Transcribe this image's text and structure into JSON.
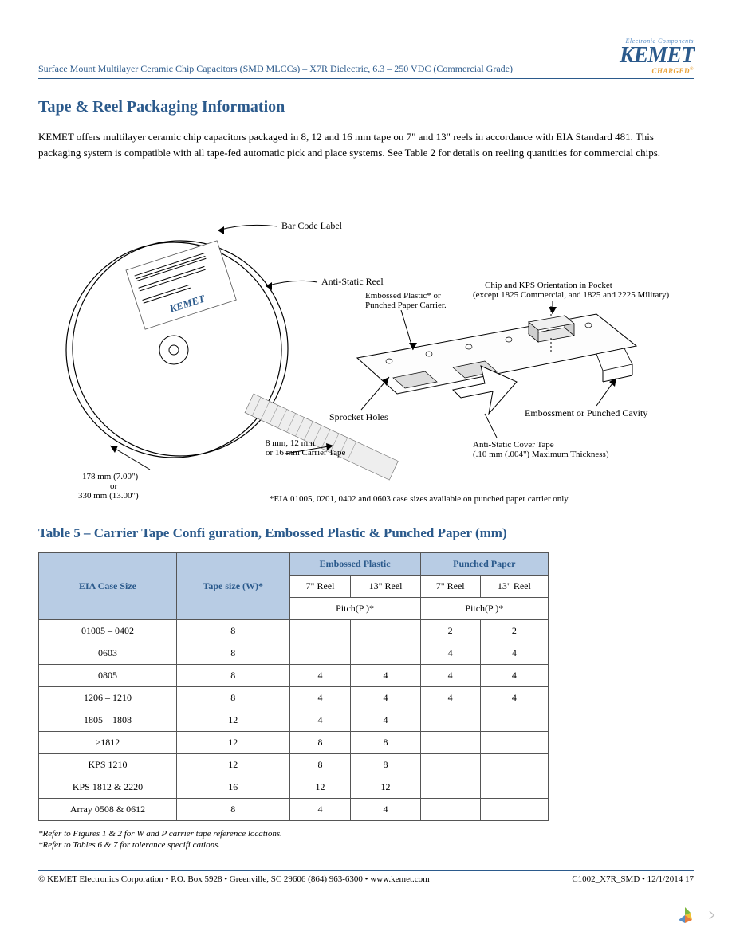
{
  "header": {
    "doc_title": "Surface Mount Multilayer Ceramic Chip Capacitors (SMD MLCCs) – X7R Dielectric, 6.3 – 250 VDC (Commercial Grade)",
    "logo_tagline": "Electronic Components",
    "logo_text": "KEMET",
    "logo_sub": "CHARGED"
  },
  "section": {
    "title": "Tape & Reel Packaging Information",
    "paragraph": "KEMET offers multilayer ceramic chip capacitors packaged in 8, 12 and 16 mm tape on 7\" and 13\" reels in accordance with EIA Standard 481. This packaging system is compatible with all tape-fed automatic pick and place systems. See Table 2 for details on reeling quantities for commercial chips."
  },
  "diagram": {
    "labels": {
      "barcode": "Bar Code Label",
      "antistatic_reel": "Anti-Static Reel",
      "carrier_type": "Embossed Plastic* or\nPunched Paper Carrier.",
      "chip_orient": "Chip and KPS Orientation in Pocket\n(except 1825 Commercial, and 1825 and 2225 Military)",
      "sprocket": "Sprocket Holes",
      "emboss_cavity": "Embossment or Punched Cavity",
      "cover_tape": "Anti-Static Cover Tape\n(.10 mm (.004\") Maximum Thickness)",
      "tape_width": "8 mm, 12 mm\nor 16 mm Carrier Tape",
      "reel_size": "178 mm (7.00\")\nor\n330 mm (13.00\")",
      "note": "*EIA 01005, 0201, 0402 and 0603 case sizes available on punched paper carrier only."
    },
    "kemet_stamp": "KEMET"
  },
  "table5": {
    "title": "Table 5 – Carrier Tape Confi guration, Embossed Plastic & Punched Paper (mm)",
    "headers": {
      "case": "EIA Case Size",
      "tape": "Tape size (W)*",
      "emb": "Embossed Plastic",
      "pun": "Punched Paper",
      "r7": "7\" Reel",
      "r13": "13\" Reel",
      "pitch": "Pitch(P  )*"
    },
    "rows": [
      {
        "case": "01005 – 0402",
        "tape": "8",
        "e7": "",
        "e13": "",
        "p7": "2",
        "p13": "2"
      },
      {
        "case": "0603",
        "tape": "8",
        "e7": "",
        "e13": "",
        "p7": "4",
        "p13": "4"
      },
      {
        "case": "0805",
        "tape": "8",
        "e7": "4",
        "e13": "4",
        "p7": "4",
        "p13": "4"
      },
      {
        "case": "1206 – 1210",
        "tape": "8",
        "e7": "4",
        "e13": "4",
        "p7": "4",
        "p13": "4"
      },
      {
        "case": "1805 – 1808",
        "tape": "12",
        "e7": "4",
        "e13": "4",
        "p7": "",
        "p13": ""
      },
      {
        "case": "≥1812",
        "tape": "12",
        "e7": "8",
        "e13": "8",
        "p7": "",
        "p13": ""
      },
      {
        "case": "KPS 1210",
        "tape": "12",
        "e7": "8",
        "e13": "8",
        "p7": "",
        "p13": ""
      },
      {
        "case": "KPS 1812 & 2220",
        "tape": "16",
        "e7": "12",
        "e13": "12",
        "p7": "",
        "p13": ""
      },
      {
        "case": "Array 0508 & 0612",
        "tape": "8",
        "e7": "4",
        "e13": "4",
        "p7": "",
        "p13": ""
      }
    ],
    "footnote1": "*Refer to Figures 1 & 2 for W and P    carrier tape reference locations.",
    "footnote2": "*Refer to Tables 6 & 7 for tolerance specifi cations."
  },
  "footer": {
    "left": "© KEMET Electronics Corporation • P.O. Box 5928 • Greenville, SC 29606 (864) 963-6300 • www.kemet.com",
    "right": "C1002_X7R_SMD • 12/1/2014  17"
  },
  "colors": {
    "brand_blue": "#2b5a8c",
    "header_bg": "#b8cce4",
    "orange": "#e8a23a"
  }
}
